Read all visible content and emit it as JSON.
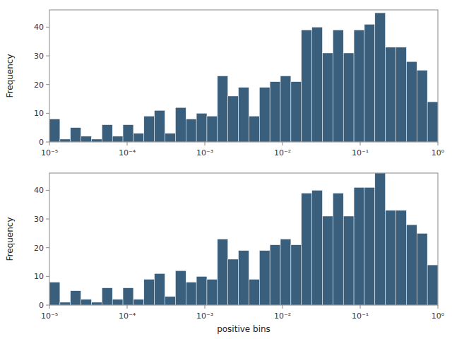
{
  "chart_data": [
    {
      "type": "histogram",
      "bins": [
        1e-05,
        1.36501e-05,
        1.86325e-05,
        2.54335e-05,
        3.47169e-05,
        4.73888e-05,
        6.46861e-05,
        8.8297e-05,
        0.000120526,
        0.000164519,
        0.00022457,
        0.00030654,
        0.000418429,
        0.000571159,
        0.000779636,
        0.00106421,
        0.00145265,
        0.00198288,
        0.00270665,
        0.0036946,
        0.00504316,
        0.00688395,
        0.00939665,
        0.0128265,
        0.0175083,
        0.0238989,
        0.0326222,
        0.0445296,
        0.0607832,
        0.0829696,
        0.113254,
        0.154593,
        0.21102,
        0.288044,
        0.393183,
        0.536698,
        0.732597,
        1
      ],
      "values": [
        8,
        1,
        5,
        2,
        1,
        6,
        2,
        6,
        3,
        9,
        11,
        3,
        12,
        8,
        10,
        9,
        23,
        16,
        19,
        9,
        19,
        21,
        23,
        21,
        39,
        40,
        31,
        39,
        31,
        39,
        41,
        45,
        33,
        33,
        28,
        25,
        14
      ],
      "color": "#3a5f7d",
      "ylabel": "Frequency",
      "log": "x",
      "xlim": [
        1e-05,
        1
      ],
      "xticks": [
        {
          "value": 1e-05,
          "label": "10⁻⁵"
        },
        {
          "value": 0.0001,
          "label": "10⁻⁴"
        },
        {
          "value": 0.001,
          "label": "10⁻³"
        },
        {
          "value": 0.01,
          "label": "10⁻²"
        },
        {
          "value": 0.1,
          "label": "10⁻¹"
        },
        {
          "value": 1,
          "label": "10⁰"
        }
      ],
      "ylim": [
        0,
        46
      ],
      "yticks": [
        0,
        10,
        20,
        30,
        40
      ],
      "grid": false
    },
    {
      "type": "histogram",
      "bins": [
        1e-05,
        1.36501e-05,
        1.86325e-05,
        2.54335e-05,
        3.47169e-05,
        4.73888e-05,
        6.46861e-05,
        8.8297e-05,
        0.000120526,
        0.000164519,
        0.00022457,
        0.00030654,
        0.000418429,
        0.000571159,
        0.000779636,
        0.00106421,
        0.00145265,
        0.00198288,
        0.00270665,
        0.0036946,
        0.00504316,
        0.00688395,
        0.00939665,
        0.0128265,
        0.0175083,
        0.0238989,
        0.0326222,
        0.0445296,
        0.0607832,
        0.0829696,
        0.113254,
        0.154593,
        0.21102,
        0.288044,
        0.393183,
        0.536698,
        0.732597,
        1
      ],
      "values": [
        8,
        1,
        5,
        2,
        1,
        6,
        2,
        6,
        2,
        9,
        11,
        3,
        12,
        8,
        10,
        9,
        23,
        16,
        19,
        9,
        19,
        21,
        23,
        21,
        39,
        40,
        31,
        39,
        31,
        41,
        41,
        46,
        33,
        33,
        28,
        25,
        14
      ],
      "color": "#3a5f7d",
      "ylabel": "Frequency",
      "xlabel": "positive bins",
      "log": "x",
      "xlim": [
        1e-05,
        1
      ],
      "xticks": [
        {
          "value": 1e-05,
          "label": "10⁻⁵"
        },
        {
          "value": 0.0001,
          "label": "10⁻⁴"
        },
        {
          "value": 0.001,
          "label": "10⁻³"
        },
        {
          "value": 0.01,
          "label": "10⁻²"
        },
        {
          "value": 0.1,
          "label": "10⁻¹"
        },
        {
          "value": 1,
          "label": "10⁰"
        }
      ],
      "ylim": [
        0,
        46
      ],
      "yticks": [
        0,
        10,
        20,
        30,
        40
      ],
      "grid": false
    }
  ]
}
